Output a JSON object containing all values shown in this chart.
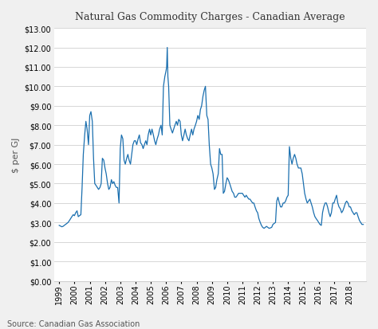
{
  "title": "Natural Gas Commodity Charges - Canadian Average",
  "ylabel": "$ per GJ",
  "source": "Source: Canadian Gas Association",
  "line_color": "#1a6faf",
  "background_color": "#f0f0f0",
  "plot_bg_color": "#ffffff",
  "ylim": [
    0,
    13
  ],
  "yticks": [
    0,
    1,
    2,
    3,
    4,
    5,
    6,
    7,
    8,
    9,
    10,
    11,
    12,
    13
  ],
  "years": [
    1999,
    2000,
    2001,
    2002,
    2003,
    2004,
    2005,
    2006,
    2007,
    2008,
    2009,
    2010,
    2011,
    2012,
    2013,
    2014,
    2015,
    2016,
    2017,
    2018
  ],
  "data": [
    [
      1999.0,
      2.85
    ],
    [
      1999.08,
      2.82
    ],
    [
      1999.17,
      2.78
    ],
    [
      1999.25,
      2.8
    ],
    [
      1999.33,
      2.85
    ],
    [
      1999.42,
      2.9
    ],
    [
      1999.5,
      2.95
    ],
    [
      1999.58,
      3.0
    ],
    [
      1999.67,
      3.1
    ],
    [
      1999.75,
      3.2
    ],
    [
      1999.83,
      3.3
    ],
    [
      1999.92,
      3.4
    ],
    [
      2000.0,
      3.35
    ],
    [
      2000.08,
      3.5
    ],
    [
      2000.17,
      3.6
    ],
    [
      2000.25,
      3.3
    ],
    [
      2000.33,
      3.35
    ],
    [
      2000.42,
      3.4
    ],
    [
      2000.5,
      4.8
    ],
    [
      2000.58,
      6.5
    ],
    [
      2000.67,
      7.5
    ],
    [
      2000.75,
      8.2
    ],
    [
      2000.83,
      7.8
    ],
    [
      2000.92,
      7.0
    ],
    [
      2001.0,
      8.5
    ],
    [
      2001.08,
      8.7
    ],
    [
      2001.17,
      8.2
    ],
    [
      2001.25,
      6.3
    ],
    [
      2001.33,
      5.0
    ],
    [
      2001.42,
      4.9
    ],
    [
      2001.5,
      4.8
    ],
    [
      2001.58,
      4.7
    ],
    [
      2001.67,
      4.8
    ],
    [
      2001.75,
      5.0
    ],
    [
      2001.83,
      6.3
    ],
    [
      2001.92,
      6.2
    ],
    [
      2002.0,
      5.8
    ],
    [
      2002.08,
      5.5
    ],
    [
      2002.17,
      5.0
    ],
    [
      2002.25,
      4.7
    ],
    [
      2002.33,
      4.8
    ],
    [
      2002.42,
      5.2
    ],
    [
      2002.5,
      5.0
    ],
    [
      2002.58,
      5.1
    ],
    [
      2002.67,
      4.9
    ],
    [
      2002.75,
      4.8
    ],
    [
      2002.83,
      4.8
    ],
    [
      2002.92,
      4.0
    ],
    [
      2003.0,
      6.8
    ],
    [
      2003.08,
      7.5
    ],
    [
      2003.17,
      7.3
    ],
    [
      2003.25,
      6.2
    ],
    [
      2003.33,
      6.0
    ],
    [
      2003.42,
      6.3
    ],
    [
      2003.5,
      6.5
    ],
    [
      2003.58,
      6.2
    ],
    [
      2003.67,
      6.0
    ],
    [
      2003.75,
      6.5
    ],
    [
      2003.83,
      7.0
    ],
    [
      2003.92,
      7.2
    ],
    [
      2004.0,
      7.2
    ],
    [
      2004.08,
      7.0
    ],
    [
      2004.17,
      7.3
    ],
    [
      2004.25,
      7.5
    ],
    [
      2004.33,
      7.1
    ],
    [
      2004.42,
      7.0
    ],
    [
      2004.5,
      6.8
    ],
    [
      2004.58,
      7.0
    ],
    [
      2004.67,
      7.2
    ],
    [
      2004.75,
      7.0
    ],
    [
      2004.83,
      7.5
    ],
    [
      2004.92,
      7.8
    ],
    [
      2005.0,
      7.5
    ],
    [
      2005.08,
      7.8
    ],
    [
      2005.17,
      7.5
    ],
    [
      2005.25,
      7.2
    ],
    [
      2005.33,
      7.0
    ],
    [
      2005.42,
      7.3
    ],
    [
      2005.5,
      7.5
    ],
    [
      2005.58,
      7.8
    ],
    [
      2005.67,
      8.0
    ],
    [
      2005.75,
      7.5
    ],
    [
      2005.83,
      10.0
    ],
    [
      2005.92,
      10.5
    ],
    [
      2006.0,
      10.8
    ],
    [
      2006.04,
      11.0
    ],
    [
      2006.08,
      12.0
    ],
    [
      2006.12,
      10.5
    ],
    [
      2006.17,
      10.0
    ],
    [
      2006.25,
      8.0
    ],
    [
      2006.33,
      7.8
    ],
    [
      2006.42,
      7.6
    ],
    [
      2006.5,
      7.8
    ],
    [
      2006.58,
      8.0
    ],
    [
      2006.67,
      8.2
    ],
    [
      2006.75,
      8.0
    ],
    [
      2006.83,
      8.3
    ],
    [
      2006.92,
      8.2
    ],
    [
      2007.0,
      7.5
    ],
    [
      2007.08,
      7.2
    ],
    [
      2007.17,
      7.5
    ],
    [
      2007.25,
      7.8
    ],
    [
      2007.33,
      7.5
    ],
    [
      2007.42,
      7.3
    ],
    [
      2007.5,
      7.2
    ],
    [
      2007.58,
      7.5
    ],
    [
      2007.67,
      7.8
    ],
    [
      2007.75,
      7.5
    ],
    [
      2007.83,
      7.8
    ],
    [
      2007.92,
      8.0
    ],
    [
      2008.0,
      8.2
    ],
    [
      2008.08,
      8.5
    ],
    [
      2008.17,
      8.3
    ],
    [
      2008.25,
      8.8
    ],
    [
      2008.33,
      9.0
    ],
    [
      2008.42,
      9.5
    ],
    [
      2008.5,
      9.8
    ],
    [
      2008.58,
      10.0
    ],
    [
      2008.67,
      8.5
    ],
    [
      2008.75,
      8.3
    ],
    [
      2008.83,
      7.0
    ],
    [
      2008.92,
      6.0
    ],
    [
      2009.0,
      5.8
    ],
    [
      2009.08,
      5.5
    ],
    [
      2009.17,
      4.7
    ],
    [
      2009.25,
      4.8
    ],
    [
      2009.33,
      5.2
    ],
    [
      2009.42,
      5.5
    ],
    [
      2009.5,
      6.8
    ],
    [
      2009.58,
      6.5
    ],
    [
      2009.67,
      6.5
    ],
    [
      2009.75,
      4.5
    ],
    [
      2009.83,
      4.6
    ],
    [
      2009.92,
      5.0
    ],
    [
      2010.0,
      5.3
    ],
    [
      2010.08,
      5.2
    ],
    [
      2010.17,
      5.0
    ],
    [
      2010.25,
      4.8
    ],
    [
      2010.33,
      4.6
    ],
    [
      2010.42,
      4.5
    ],
    [
      2010.5,
      4.3
    ],
    [
      2010.58,
      4.3
    ],
    [
      2010.67,
      4.4
    ],
    [
      2010.75,
      4.5
    ],
    [
      2010.83,
      4.5
    ],
    [
      2010.92,
      4.5
    ],
    [
      2011.0,
      4.5
    ],
    [
      2011.08,
      4.4
    ],
    [
      2011.17,
      4.3
    ],
    [
      2011.25,
      4.4
    ],
    [
      2011.33,
      4.3
    ],
    [
      2011.42,
      4.2
    ],
    [
      2011.5,
      4.2
    ],
    [
      2011.58,
      4.1
    ],
    [
      2011.67,
      4.0
    ],
    [
      2011.75,
      4.0
    ],
    [
      2011.83,
      3.8
    ],
    [
      2011.92,
      3.6
    ],
    [
      2012.0,
      3.5
    ],
    [
      2012.08,
      3.2
    ],
    [
      2012.17,
      3.0
    ],
    [
      2012.25,
      2.85
    ],
    [
      2012.33,
      2.75
    ],
    [
      2012.42,
      2.7
    ],
    [
      2012.5,
      2.75
    ],
    [
      2012.58,
      2.8
    ],
    [
      2012.67,
      2.75
    ],
    [
      2012.75,
      2.7
    ],
    [
      2012.83,
      2.72
    ],
    [
      2012.92,
      2.75
    ],
    [
      2013.0,
      2.9
    ],
    [
      2013.08,
      2.95
    ],
    [
      2013.17,
      3.0
    ],
    [
      2013.25,
      4.1
    ],
    [
      2013.33,
      4.3
    ],
    [
      2013.42,
      4.0
    ],
    [
      2013.5,
      3.8
    ],
    [
      2013.58,
      3.8
    ],
    [
      2013.67,
      4.0
    ],
    [
      2013.75,
      4.0
    ],
    [
      2013.83,
      4.1
    ],
    [
      2013.92,
      4.3
    ],
    [
      2014.0,
      4.4
    ],
    [
      2014.08,
      6.9
    ],
    [
      2014.17,
      6.3
    ],
    [
      2014.25,
      6.0
    ],
    [
      2014.33,
      6.3
    ],
    [
      2014.42,
      6.5
    ],
    [
      2014.5,
      6.3
    ],
    [
      2014.58,
      6.0
    ],
    [
      2014.67,
      5.8
    ],
    [
      2014.75,
      5.8
    ],
    [
      2014.83,
      5.8
    ],
    [
      2014.92,
      5.5
    ],
    [
      2015.0,
      5.0
    ],
    [
      2015.08,
      4.5
    ],
    [
      2015.17,
      4.2
    ],
    [
      2015.25,
      4.0
    ],
    [
      2015.33,
      4.1
    ],
    [
      2015.42,
      4.2
    ],
    [
      2015.5,
      4.0
    ],
    [
      2015.58,
      3.8
    ],
    [
      2015.67,
      3.5
    ],
    [
      2015.75,
      3.3
    ],
    [
      2015.83,
      3.2
    ],
    [
      2015.92,
      3.1
    ],
    [
      2016.0,
      3.0
    ],
    [
      2016.08,
      2.9
    ],
    [
      2016.17,
      2.85
    ],
    [
      2016.25,
      3.5
    ],
    [
      2016.33,
      3.8
    ],
    [
      2016.42,
      4.0
    ],
    [
      2016.5,
      4.0
    ],
    [
      2016.58,
      3.8
    ],
    [
      2016.67,
      3.5
    ],
    [
      2016.75,
      3.3
    ],
    [
      2016.83,
      3.5
    ],
    [
      2016.92,
      4.0
    ],
    [
      2017.0,
      4.0
    ],
    [
      2017.08,
      4.2
    ],
    [
      2017.17,
      4.4
    ],
    [
      2017.25,
      4.0
    ],
    [
      2017.33,
      3.8
    ],
    [
      2017.42,
      3.7
    ],
    [
      2017.5,
      3.5
    ],
    [
      2017.58,
      3.6
    ],
    [
      2017.67,
      3.8
    ],
    [
      2017.75,
      4.0
    ],
    [
      2017.83,
      4.1
    ],
    [
      2017.92,
      4.0
    ],
    [
      2018.0,
      3.8
    ],
    [
      2018.08,
      3.8
    ],
    [
      2018.17,
      3.6
    ],
    [
      2018.25,
      3.5
    ],
    [
      2018.33,
      3.4
    ],
    [
      2018.42,
      3.5
    ],
    [
      2018.5,
      3.5
    ],
    [
      2018.58,
      3.3
    ],
    [
      2018.67,
      3.1
    ],
    [
      2018.75,
      3.0
    ],
    [
      2018.83,
      2.9
    ],
    [
      2018.92,
      2.9
    ]
  ]
}
